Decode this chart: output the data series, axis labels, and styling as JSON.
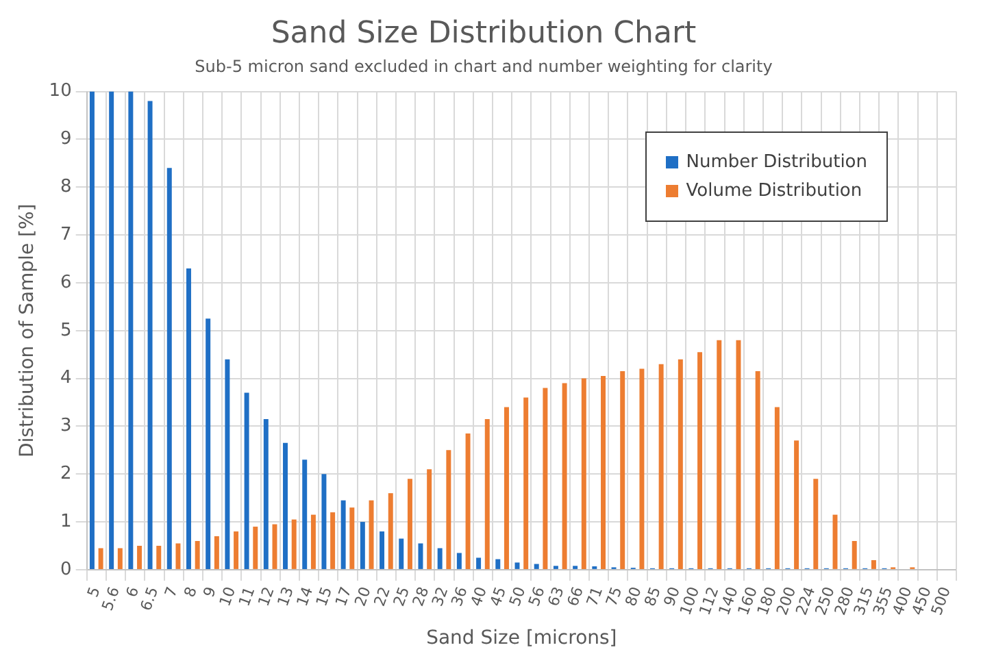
{
  "chart_data": {
    "type": "bar",
    "title": "Sand Size Distribution Chart",
    "subtitle": "Sub-5 micron sand excluded in chart and number weighting for clarity",
    "xlabel": "Sand Size [microns]",
    "ylabel": "Distribution of Sample [%]",
    "categories": [
      "5",
      "5.6",
      "6",
      "6.5",
      "7",
      "8",
      "9",
      "10",
      "11",
      "12",
      "13",
      "14",
      "15",
      "17",
      "20",
      "22",
      "25",
      "28",
      "32",
      "36",
      "40",
      "45",
      "50",
      "56",
      "63",
      "66",
      "71",
      "75",
      "80",
      "85",
      "90",
      "100",
      "112",
      "140",
      "160",
      "180",
      "200",
      "224",
      "250",
      "280",
      "315",
      "355",
      "400",
      "450",
      "500"
    ],
    "series": [
      {
        "name": "Number Distribution",
        "color": "#1f6fc5",
        "values": [
          10,
          10,
          10,
          9.8,
          8.4,
          6.3,
          5.25,
          4.4,
          3.7,
          3.15,
          2.65,
          2.3,
          2.0,
          1.45,
          1.0,
          0.8,
          0.65,
          0.55,
          0.45,
          0.35,
          0.25,
          0.22,
          0.15,
          0.12,
          0.08,
          0.08,
          0.07,
          0.05,
          0.04,
          0.03,
          0.03,
          0.03,
          0.03,
          0.03,
          0.03,
          0.03,
          0.03,
          0.03,
          0.03,
          0.03,
          0.03,
          0.03,
          0,
          0,
          0
        ]
      },
      {
        "name": "Volume Distribution",
        "color": "#ed7d31",
        "values": [
          0.45,
          0.45,
          0.5,
          0.5,
          0.55,
          0.6,
          0.7,
          0.8,
          0.9,
          0.95,
          1.05,
          1.15,
          1.2,
          1.3,
          1.45,
          1.6,
          1.9,
          2.1,
          2.5,
          2.85,
          3.15,
          3.4,
          3.6,
          3.8,
          3.9,
          4.0,
          4.05,
          4.15,
          4.2,
          4.3,
          4.4,
          4.55,
          4.8,
          4.8,
          4.15,
          3.4,
          2.7,
          1.9,
          1.15,
          0.6,
          0.2,
          0.05,
          0.05,
          0,
          0
        ]
      }
    ],
    "ylim": [
      0,
      10
    ],
    "yticks": [
      0,
      1,
      2,
      3,
      4,
      5,
      6,
      7,
      8,
      9,
      10
    ],
    "grid": true,
    "legend": "top right"
  }
}
